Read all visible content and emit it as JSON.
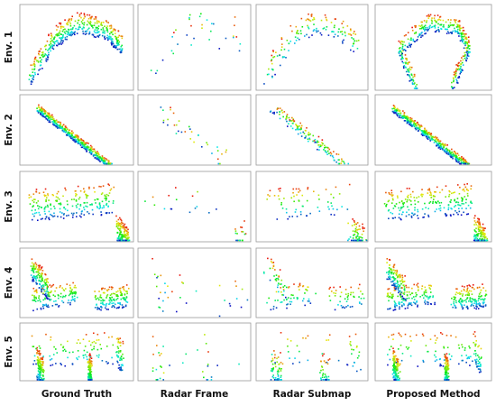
{
  "row_labels": [
    "Env. 1",
    "Env. 2",
    "Env. 3",
    "Env. 4",
    "Env. 5"
  ],
  "column_labels": [
    "Ground Truth",
    "Radar Frame",
    "Radar Submap",
    "Proposed Method"
  ]
}
